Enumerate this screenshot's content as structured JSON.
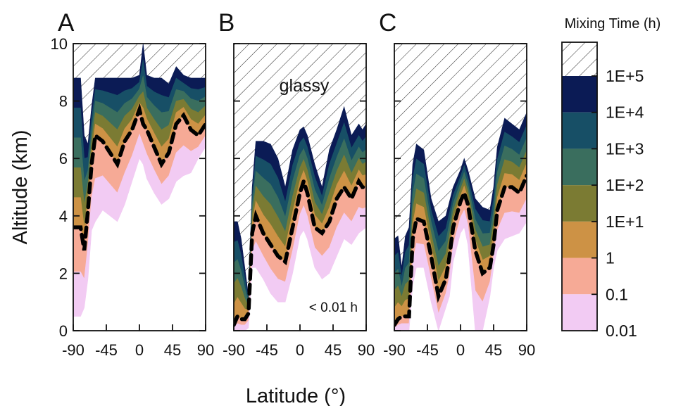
{
  "chart_data": {
    "type": "area",
    "y_axis_label": "Altitude (km)",
    "x_axis_label": "Latitude (°)",
    "ylim": [
      0,
      10
    ],
    "xlim": [
      -90,
      90
    ],
    "y_ticks": [
      0,
      2,
      4,
      6,
      8,
      10
    ],
    "x_ticks": [
      -90,
      -45,
      0,
      45,
      90
    ],
    "legend": {
      "title": "Mixing Time (h)",
      "placement": "right",
      "hatch_meaning": "above 1E+5",
      "labels": [
        "1E+5",
        "1E+4",
        "1E+3",
        "1E+2",
        "1E+1",
        "1",
        "0.1",
        "0.01"
      ],
      "colors": [
        "#0b1b55",
        "#174f66",
        "#3a6e5e",
        "#7b7b33",
        "#cd9245",
        "#f6aa96",
        "#f2cbf3",
        "#ffffff"
      ]
    },
    "panels": [
      {
        "label": "A",
        "annotations": [],
        "latitude": [
          -90,
          -80,
          -75,
          -70,
          -65,
          -60,
          -50,
          -40,
          -30,
          -20,
          -10,
          0,
          5,
          10,
          20,
          30,
          40,
          50,
          60,
          70,
          80,
          90
        ],
        "top": [
          8.8,
          8.8,
          6.8,
          6.5,
          7.8,
          8.8,
          8.8,
          8.8,
          8.8,
          8.8,
          8.8,
          8.9,
          10.0,
          8.9,
          8.8,
          8.8,
          8.6,
          9.2,
          8.9,
          8.8,
          8.8,
          8.8
        ],
        "dashed_line": [
          3.6,
          3.6,
          2.8,
          4.2,
          5.8,
          6.8,
          6.6,
          6.2,
          5.8,
          6.6,
          7.0,
          7.7,
          7.2,
          7.0,
          6.4,
          5.8,
          6.2,
          7.2,
          7.5,
          7.0,
          6.8,
          7.2
        ],
        "bottom": [
          0.5,
          0.5,
          0.8,
          1.8,
          3.5,
          3.8,
          4.2,
          4.0,
          3.8,
          4.4,
          5.2,
          6.0,
          5.8,
          5.3,
          4.8,
          4.4,
          4.6,
          5.2,
          5.4,
          5.5,
          6.0,
          6.4
        ]
      },
      {
        "label": "B",
        "annotations": [
          "glassy",
          "< 0.01 h"
        ],
        "latitude": [
          -90,
          -85,
          -80,
          -75,
          -70,
          -65,
          -60,
          -50,
          -40,
          -30,
          -20,
          -10,
          0,
          5,
          10,
          20,
          30,
          40,
          50,
          60,
          70,
          80,
          85,
          90
        ],
        "top": [
          3.8,
          3.8,
          3.2,
          2.2,
          1.2,
          5.0,
          6.6,
          6.6,
          6.5,
          6.0,
          5.0,
          6.3,
          7.0,
          7.1,
          6.8,
          5.8,
          5.0,
          6.3,
          7.0,
          7.8,
          6.8,
          7.2,
          7.0,
          7.2
        ],
        "dashed_line": [
          0.2,
          0.5,
          0.4,
          0.4,
          0.6,
          3.4,
          4.0,
          3.4,
          3.0,
          2.6,
          2.4,
          3.6,
          4.8,
          5.2,
          4.8,
          3.6,
          3.4,
          3.8,
          4.6,
          5.0,
          4.6,
          5.2,
          5.0,
          5.0
        ],
        "bottom": [
          0.0,
          0.0,
          0.0,
          0.0,
          0.1,
          2.2,
          2.2,
          1.8,
          1.3,
          1.0,
          1.0,
          2.0,
          3.3,
          3.5,
          3.2,
          2.2,
          1.8,
          2.0,
          2.6,
          3.2,
          3.0,
          3.4,
          3.5,
          3.6
        ]
      },
      {
        "label": "C",
        "annotations": [],
        "latitude": [
          -90,
          -85,
          -80,
          -75,
          -70,
          -65,
          -60,
          -50,
          -40,
          -30,
          -20,
          -15,
          -10,
          0,
          5,
          10,
          20,
          30,
          40,
          45,
          50,
          60,
          70,
          80,
          90
        ],
        "top": [
          3.2,
          3.3,
          2.2,
          3.3,
          3.6,
          5.8,
          6.5,
          6.3,
          4.6,
          3.8,
          4.0,
          4.5,
          5.0,
          5.6,
          6.0,
          5.6,
          4.6,
          4.3,
          4.2,
          5.0,
          6.4,
          7.4,
          7.2,
          7.0,
          7.6
        ],
        "dashed_line": [
          0.2,
          0.4,
          0.5,
          0.5,
          0.5,
          3.2,
          3.9,
          3.8,
          2.6,
          1.2,
          1.8,
          2.6,
          3.6,
          4.5,
          4.8,
          4.4,
          2.8,
          2.0,
          2.2,
          3.0,
          4.2,
          5.0,
          5.0,
          4.8,
          5.4
        ],
        "bottom": [
          0.0,
          0.0,
          0.0,
          0.0,
          0.0,
          1.6,
          2.2,
          2.2,
          1.0,
          0.0,
          0.8,
          1.2,
          2.4,
          3.4,
          3.6,
          3.0,
          0.0,
          0.0,
          1.2,
          2.2,
          2.8,
          3.2,
          3.3,
          3.4,
          3.8
        ]
      }
    ]
  }
}
